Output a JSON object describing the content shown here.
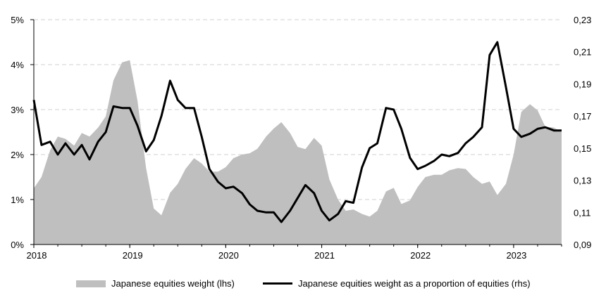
{
  "chart_data": {
    "type": "area",
    "title": "",
    "xlabel": "",
    "ylabel": "",
    "x_ticks": [
      "2018",
      "2019",
      "2020",
      "2021",
      "2022",
      "2023"
    ],
    "x_range": [
      2018.0,
      2023.5
    ],
    "y_left": {
      "lim": [
        0,
        5
      ],
      "ticks": [
        "0%",
        "1%",
        "2%",
        "3%",
        "4%",
        "5%"
      ]
    },
    "y_right": {
      "lim": [
        0.09,
        0.23
      ],
      "ticks": [
        "0,09",
        "0,11",
        "0,13",
        "0,15",
        "0,17",
        "0,19",
        "0,21",
        "0,23"
      ]
    },
    "grid": "horizontal dashed",
    "series": [
      {
        "name": "Japanese equities weight (lhs)",
        "kind": "area",
        "axis": "left",
        "color": "#bfbfbf",
        "points": [
          [
            2018.0,
            1.25
          ],
          [
            2018.08,
            1.5
          ],
          [
            2018.17,
            2.1
          ],
          [
            2018.25,
            2.4
          ],
          [
            2018.33,
            2.35
          ],
          [
            2018.42,
            2.2
          ],
          [
            2018.5,
            2.48
          ],
          [
            2018.58,
            2.4
          ],
          [
            2018.67,
            2.6
          ],
          [
            2018.75,
            2.85
          ],
          [
            2018.83,
            3.65
          ],
          [
            2018.92,
            4.05
          ],
          [
            2019.0,
            4.1
          ],
          [
            2019.08,
            3.2
          ],
          [
            2019.17,
            1.7
          ],
          [
            2019.25,
            0.8
          ],
          [
            2019.33,
            0.65
          ],
          [
            2019.42,
            1.15
          ],
          [
            2019.5,
            1.35
          ],
          [
            2019.58,
            1.68
          ],
          [
            2019.67,
            1.92
          ],
          [
            2019.75,
            1.8
          ],
          [
            2019.83,
            1.62
          ],
          [
            2019.92,
            1.62
          ],
          [
            2020.0,
            1.72
          ],
          [
            2020.08,
            1.92
          ],
          [
            2020.17,
            2.0
          ],
          [
            2020.25,
            2.03
          ],
          [
            2020.33,
            2.13
          ],
          [
            2020.42,
            2.4
          ],
          [
            2020.5,
            2.58
          ],
          [
            2020.58,
            2.72
          ],
          [
            2020.67,
            2.48
          ],
          [
            2020.75,
            2.17
          ],
          [
            2020.83,
            2.12
          ],
          [
            2020.92,
            2.37
          ],
          [
            2021.0,
            2.2
          ],
          [
            2021.08,
            1.45
          ],
          [
            2021.17,
            1.0
          ],
          [
            2021.25,
            0.75
          ],
          [
            2021.33,
            0.78
          ],
          [
            2021.42,
            0.68
          ],
          [
            2021.5,
            0.62
          ],
          [
            2021.58,
            0.75
          ],
          [
            2021.67,
            1.18
          ],
          [
            2021.75,
            1.26
          ],
          [
            2021.83,
            0.9
          ],
          [
            2021.92,
            0.98
          ],
          [
            2022.0,
            1.28
          ],
          [
            2022.08,
            1.5
          ],
          [
            2022.17,
            1.55
          ],
          [
            2022.25,
            1.55
          ],
          [
            2022.33,
            1.65
          ],
          [
            2022.42,
            1.7
          ],
          [
            2022.5,
            1.68
          ],
          [
            2022.58,
            1.5
          ],
          [
            2022.67,
            1.35
          ],
          [
            2022.75,
            1.4
          ],
          [
            2022.83,
            1.1
          ],
          [
            2022.92,
            1.35
          ],
          [
            2023.0,
            2.0
          ],
          [
            2023.08,
            2.95
          ],
          [
            2023.17,
            3.12
          ],
          [
            2023.25,
            2.98
          ],
          [
            2023.33,
            2.62
          ],
          [
            2023.42,
            2.6
          ],
          [
            2023.5,
            2.5
          ]
        ]
      },
      {
        "name": "Japanese equities weight as a proportion of equities (rhs)",
        "kind": "line",
        "axis": "right",
        "color": "#000000",
        "points": [
          [
            2018.0,
            0.18
          ],
          [
            2018.08,
            0.152
          ],
          [
            2018.17,
            0.154
          ],
          [
            2018.25,
            0.146
          ],
          [
            2018.33,
            0.153
          ],
          [
            2018.42,
            0.146
          ],
          [
            2018.5,
            0.152
          ],
          [
            2018.58,
            0.143
          ],
          [
            2018.67,
            0.154
          ],
          [
            2018.75,
            0.16
          ],
          [
            2018.83,
            0.176
          ],
          [
            2018.92,
            0.175
          ],
          [
            2019.0,
            0.175
          ],
          [
            2019.08,
            0.164
          ],
          [
            2019.17,
            0.148
          ],
          [
            2019.25,
            0.155
          ],
          [
            2019.33,
            0.17
          ],
          [
            2019.42,
            0.192
          ],
          [
            2019.5,
            0.18
          ],
          [
            2019.58,
            0.175
          ],
          [
            2019.67,
            0.175
          ],
          [
            2019.75,
            0.157
          ],
          [
            2019.83,
            0.137
          ],
          [
            2019.92,
            0.129
          ],
          [
            2020.0,
            0.125
          ],
          [
            2020.08,
            0.126
          ],
          [
            2020.17,
            0.122
          ],
          [
            2020.25,
            0.115
          ],
          [
            2020.33,
            0.111
          ],
          [
            2020.42,
            0.11
          ],
          [
            2020.5,
            0.11
          ],
          [
            2020.58,
            0.104
          ],
          [
            2020.67,
            0.111
          ],
          [
            2020.75,
            0.119
          ],
          [
            2020.83,
            0.127
          ],
          [
            2020.92,
            0.122
          ],
          [
            2021.0,
            0.111
          ],
          [
            2021.08,
            0.105
          ],
          [
            2021.17,
            0.109
          ],
          [
            2021.25,
            0.117
          ],
          [
            2021.33,
            0.116
          ],
          [
            2021.42,
            0.138
          ],
          [
            2021.5,
            0.15
          ],
          [
            2021.58,
            0.153
          ],
          [
            2021.67,
            0.175
          ],
          [
            2021.75,
            0.174
          ],
          [
            2021.83,
            0.162
          ],
          [
            2021.92,
            0.144
          ],
          [
            2022.0,
            0.137
          ],
          [
            2022.08,
            0.139
          ],
          [
            2022.17,
            0.142
          ],
          [
            2022.25,
            0.146
          ],
          [
            2022.33,
            0.145
          ],
          [
            2022.42,
            0.147
          ],
          [
            2022.5,
            0.153
          ],
          [
            2022.58,
            0.157
          ],
          [
            2022.67,
            0.163
          ],
          [
            2022.75,
            0.208
          ],
          [
            2022.83,
            0.216
          ],
          [
            2022.92,
            0.188
          ],
          [
            2023.0,
            0.162
          ],
          [
            2023.08,
            0.157
          ],
          [
            2023.17,
            0.159
          ],
          [
            2023.25,
            0.162
          ],
          [
            2023.33,
            0.163
          ],
          [
            2023.42,
            0.161
          ],
          [
            2023.5,
            0.161
          ]
        ]
      }
    ],
    "legend": [
      {
        "label": "Japanese equities weight (lhs)",
        "style": "area"
      },
      {
        "label": "Japanese equities weight as a proportion of equities (rhs)",
        "style": "line"
      }
    ]
  }
}
